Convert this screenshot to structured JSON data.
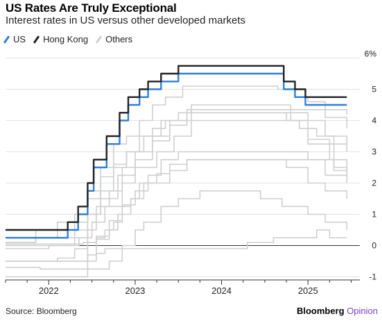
{
  "chart_data": {
    "type": "line",
    "title": "US Rates Are Truly Exceptional",
    "subtitle": "Interest rates in US versus other developed markets",
    "xlabel": "",
    "ylabel": "",
    "x_tick_labels": [
      "2022",
      "2023",
      "2024",
      "2025"
    ],
    "x_ticks": [
      2022,
      2023,
      2024,
      2025
    ],
    "xlim": [
      2021.5,
      2025.6
    ],
    "y_tick_labels": [
      "6%",
      "5",
      "4",
      "3",
      "2",
      "1",
      "0",
      "-1"
    ],
    "y_ticks": [
      6,
      5,
      4,
      3,
      2,
      1,
      0,
      -1
    ],
    "ylim": [
      -1.1,
      6.3
    ],
    "grid": true,
    "legend_position": "top-left",
    "series": [
      {
        "name": "Others",
        "values": [
          [
            2021.5,
            -0.5
          ],
          [
            2021.9,
            -0.5
          ],
          [
            2022.15,
            -0.5
          ],
          [
            2022.35,
            -0.5
          ],
          [
            2022.45,
            -0.3
          ],
          [
            2022.55,
            0.2
          ],
          [
            2022.7,
            0.5
          ],
          [
            2022.8,
            1.0
          ],
          [
            2022.95,
            1.5
          ],
          [
            2023.1,
            2.0
          ],
          [
            2023.25,
            2.3
          ],
          [
            2023.4,
            2.6
          ],
          [
            2023.6,
            2.75
          ],
          [
            2024.0,
            2.75
          ],
          [
            2024.5,
            2.75
          ],
          [
            2025.0,
            2.75
          ],
          [
            2025.3,
            2.4
          ],
          [
            2025.45,
            2.1
          ]
        ]
      },
      {
        "name": "Others",
        "values": [
          [
            2021.5,
            -0.5
          ],
          [
            2022.0,
            -0.5
          ],
          [
            2022.3,
            -0.5
          ],
          [
            2022.45,
            0.5
          ],
          [
            2022.55,
            1.25
          ],
          [
            2022.7,
            1.75
          ],
          [
            2022.85,
            2.5
          ],
          [
            2023.0,
            3.0
          ],
          [
            2023.2,
            3.5
          ],
          [
            2023.4,
            4.0
          ],
          [
            2023.65,
            4.5
          ],
          [
            2024.0,
            4.5
          ],
          [
            2024.4,
            4.5
          ],
          [
            2024.6,
            4.5
          ],
          [
            2024.8,
            4.0
          ],
          [
            2025.0,
            3.4
          ],
          [
            2025.25,
            2.75
          ],
          [
            2025.45,
            2.25
          ]
        ]
      },
      {
        "name": "Others",
        "values": [
          [
            2021.5,
            0.1
          ],
          [
            2021.85,
            0.25
          ],
          [
            2022.1,
            0.5
          ],
          [
            2022.3,
            0.75
          ],
          [
            2022.45,
            1.5
          ],
          [
            2022.6,
            2.2
          ],
          [
            2022.75,
            2.6
          ],
          [
            2022.9,
            3.0
          ],
          [
            2023.05,
            3.5
          ],
          [
            2023.2,
            3.75
          ],
          [
            2023.35,
            4.0
          ],
          [
            2023.6,
            4.25
          ],
          [
            2024.0,
            4.25
          ],
          [
            2024.5,
            4.25
          ],
          [
            2024.75,
            4.0
          ],
          [
            2025.0,
            3.25
          ],
          [
            2025.3,
            2.5
          ],
          [
            2025.45,
            2.25
          ]
        ]
      },
      {
        "name": "Others",
        "values": [
          [
            2021.5,
            0.1
          ],
          [
            2021.85,
            0.5
          ],
          [
            2022.1,
            0.75
          ],
          [
            2022.3,
            1.0
          ],
          [
            2022.45,
            1.75
          ],
          [
            2022.6,
            2.5
          ],
          [
            2022.75,
            3.25
          ],
          [
            2022.9,
            3.5
          ],
          [
            2023.05,
            4.0
          ],
          [
            2023.2,
            4.5
          ],
          [
            2023.35,
            4.75
          ],
          [
            2023.55,
            5.1
          ],
          [
            2024.0,
            5.1
          ],
          [
            2024.5,
            5.1
          ],
          [
            2024.65,
            5.0
          ],
          [
            2024.85,
            4.75
          ],
          [
            2025.0,
            4.6
          ],
          [
            2025.2,
            4.35
          ],
          [
            2025.45,
            4.2
          ]
        ]
      },
      {
        "name": "Others",
        "values": [
          [
            2021.5,
            -0.1
          ],
          [
            2022.0,
            0.0
          ],
          [
            2022.3,
            0.25
          ],
          [
            2022.45,
            1.0
          ],
          [
            2022.6,
            1.5
          ],
          [
            2022.8,
            2.25
          ],
          [
            2023.0,
            2.75
          ],
          [
            2023.2,
            3.35
          ],
          [
            2023.4,
            3.85
          ],
          [
            2023.6,
            4.35
          ],
          [
            2024.0,
            4.35
          ],
          [
            2024.5,
            4.35
          ],
          [
            2024.7,
            4.35
          ],
          [
            2024.85,
            4.35
          ],
          [
            2025.0,
            4.35
          ],
          [
            2025.2,
            4.1
          ],
          [
            2025.45,
            3.75
          ]
        ]
      },
      {
        "name": "Others",
        "values": [
          [
            2021.5,
            0.0
          ],
          [
            2022.0,
            0.0
          ],
          [
            2022.35,
            0.25
          ],
          [
            2022.5,
            0.75
          ],
          [
            2022.65,
            1.25
          ],
          [
            2022.85,
            2.0
          ],
          [
            2023.0,
            2.5
          ],
          [
            2023.25,
            3.0
          ],
          [
            2023.45,
            3.5
          ],
          [
            2023.65,
            4.0
          ],
          [
            2024.0,
            4.0
          ],
          [
            2024.5,
            4.0
          ],
          [
            2024.7,
            4.0
          ],
          [
            2024.9,
            3.75
          ],
          [
            2025.1,
            3.5
          ],
          [
            2025.3,
            3.25
          ],
          [
            2025.45,
            3.0
          ]
        ]
      },
      {
        "name": "Others",
        "values": [
          [
            2021.5,
            0.25
          ],
          [
            2022.0,
            0.25
          ],
          [
            2022.3,
            0.5
          ],
          [
            2022.45,
            1.0
          ],
          [
            2022.6,
            1.75
          ],
          [
            2022.75,
            2.5
          ],
          [
            2022.9,
            3.0
          ],
          [
            2023.1,
            3.5
          ],
          [
            2023.3,
            4.0
          ],
          [
            2023.5,
            4.25
          ],
          [
            2024.0,
            4.25
          ],
          [
            2024.5,
            4.25
          ],
          [
            2024.8,
            4.25
          ],
          [
            2025.0,
            4.0
          ],
          [
            2025.2,
            3.5
          ],
          [
            2025.45,
            3.25
          ]
        ]
      },
      {
        "name": "Others",
        "values": [
          [
            2021.5,
            0.05
          ],
          [
            2022.1,
            0.05
          ],
          [
            2022.4,
            0.1
          ],
          [
            2022.55,
            0.3
          ],
          [
            2022.7,
            0.8
          ],
          [
            2022.85,
            1.3
          ],
          [
            2023.0,
            1.75
          ],
          [
            2023.15,
            2.0
          ],
          [
            2023.4,
            2.4
          ],
          [
            2023.6,
            2.75
          ],
          [
            2024.0,
            2.75
          ],
          [
            2024.5,
            2.75
          ],
          [
            2024.75,
            2.5
          ],
          [
            2025.0,
            2.0
          ],
          [
            2025.2,
            1.75
          ],
          [
            2025.45,
            1.5
          ]
        ]
      },
      {
        "name": "Others",
        "values": [
          [
            2021.5,
            -0.5
          ],
          [
            2021.9,
            -0.5
          ],
          [
            2022.1,
            -0.4
          ],
          [
            2022.3,
            -0.1
          ],
          [
            2022.45,
            0.1
          ],
          [
            2022.55,
            0.25
          ],
          [
            2022.65,
            0.5
          ],
          [
            2022.75,
            0.75
          ],
          [
            2022.85,
            1.25
          ],
          [
            2022.95,
            1.5
          ],
          [
            2023.05,
            2.0
          ],
          [
            2023.15,
            2.25
          ],
          [
            2023.3,
            2.75
          ],
          [
            2023.5,
            3.0
          ],
          [
            2024.0,
            3.0
          ],
          [
            2024.5,
            3.0
          ],
          [
            2024.8,
            3.0
          ],
          [
            2025.0,
            2.75
          ],
          [
            2025.2,
            2.25
          ],
          [
            2025.45,
            2.0
          ]
        ]
      },
      {
        "name": "Others",
        "values": [
          [
            2021.5,
            -0.7
          ],
          [
            2021.9,
            -0.75
          ],
          [
            2022.4,
            -0.75
          ],
          [
            2022.55,
            -0.75
          ],
          [
            2022.7,
            -0.5
          ],
          [
            2022.85,
            0.0
          ],
          [
            2023.0,
            0.5
          ],
          [
            2023.1,
            0.75
          ],
          [
            2023.3,
            1.25
          ],
          [
            2023.5,
            1.5
          ],
          [
            2023.75,
            1.75
          ],
          [
            2024.0,
            1.75
          ],
          [
            2024.25,
            1.75
          ],
          [
            2024.45,
            1.5
          ],
          [
            2024.7,
            1.25
          ],
          [
            2025.0,
            1.0
          ],
          [
            2025.2,
            0.75
          ],
          [
            2025.45,
            0.5
          ]
        ]
      },
      {
        "name": "Others",
        "values": [
          [
            2021.5,
            -1.0
          ],
          [
            2021.9,
            -1.0
          ],
          [
            2022.2,
            -1.0
          ],
          [
            2022.4,
            -1.0
          ],
          [
            2022.45,
            -0.5
          ],
          [
            2022.55,
            -0.25
          ],
          [
            2022.65,
            -0.1
          ],
          [
            2022.8,
            -0.1
          ],
          [
            2023.0,
            -0.1
          ],
          [
            2023.5,
            -0.1
          ],
          [
            2024.0,
            -0.1
          ],
          [
            2024.2,
            -0.1
          ],
          [
            2024.3,
            0.1
          ],
          [
            2024.45,
            0.1
          ],
          [
            2024.6,
            0.25
          ],
          [
            2024.9,
            0.25
          ],
          [
            2025.1,
            0.5
          ],
          [
            2025.25,
            0.25
          ],
          [
            2025.45,
            0.25
          ]
        ]
      },
      {
        "name": "US",
        "values": [
          [
            2021.5,
            0.25
          ],
          [
            2022.17,
            0.25
          ],
          [
            2022.22,
            0.5
          ],
          [
            2022.34,
            1.0
          ],
          [
            2022.45,
            1.75
          ],
          [
            2022.52,
            2.5
          ],
          [
            2022.67,
            3.25
          ],
          [
            2022.75,
            3.25
          ],
          [
            2022.82,
            4.0
          ],
          [
            2022.92,
            4.5
          ],
          [
            2023.05,
            4.75
          ],
          [
            2023.15,
            5.0
          ],
          [
            2023.3,
            5.25
          ],
          [
            2023.5,
            5.5
          ],
          [
            2024.0,
            5.5
          ],
          [
            2024.5,
            5.5
          ],
          [
            2024.67,
            5.5
          ],
          [
            2024.72,
            5.0
          ],
          [
            2024.85,
            4.75
          ],
          [
            2024.97,
            4.5
          ],
          [
            2025.2,
            4.5
          ],
          [
            2025.45,
            4.5
          ]
        ]
      },
      {
        "name": "Hong Kong",
        "values": [
          [
            2021.5,
            0.5
          ],
          [
            2022.15,
            0.5
          ],
          [
            2022.22,
            0.75
          ],
          [
            2022.34,
            1.25
          ],
          [
            2022.45,
            2.0
          ],
          [
            2022.52,
            2.75
          ],
          [
            2022.67,
            3.5
          ],
          [
            2022.75,
            3.5
          ],
          [
            2022.82,
            4.25
          ],
          [
            2022.92,
            4.75
          ],
          [
            2023.05,
            5.0
          ],
          [
            2023.15,
            5.25
          ],
          [
            2023.3,
            5.5
          ],
          [
            2023.5,
            5.75
          ],
          [
            2024.0,
            5.75
          ],
          [
            2024.5,
            5.75
          ],
          [
            2024.67,
            5.75
          ],
          [
            2024.72,
            5.25
          ],
          [
            2024.85,
            5.0
          ],
          [
            2024.97,
            4.75
          ],
          [
            2025.2,
            4.75
          ],
          [
            2025.45,
            4.75
          ]
        ]
      }
    ]
  },
  "legend": [
    {
      "label": "US",
      "color": "#2b7fd8"
    },
    {
      "label": "Hong Kong",
      "color": "#222222"
    },
    {
      "label": "Others",
      "color": "#cfcfcf"
    }
  ],
  "source": "Source: Bloomberg",
  "brand": {
    "name": "Bloomberg",
    "accent": "Opinion"
  }
}
